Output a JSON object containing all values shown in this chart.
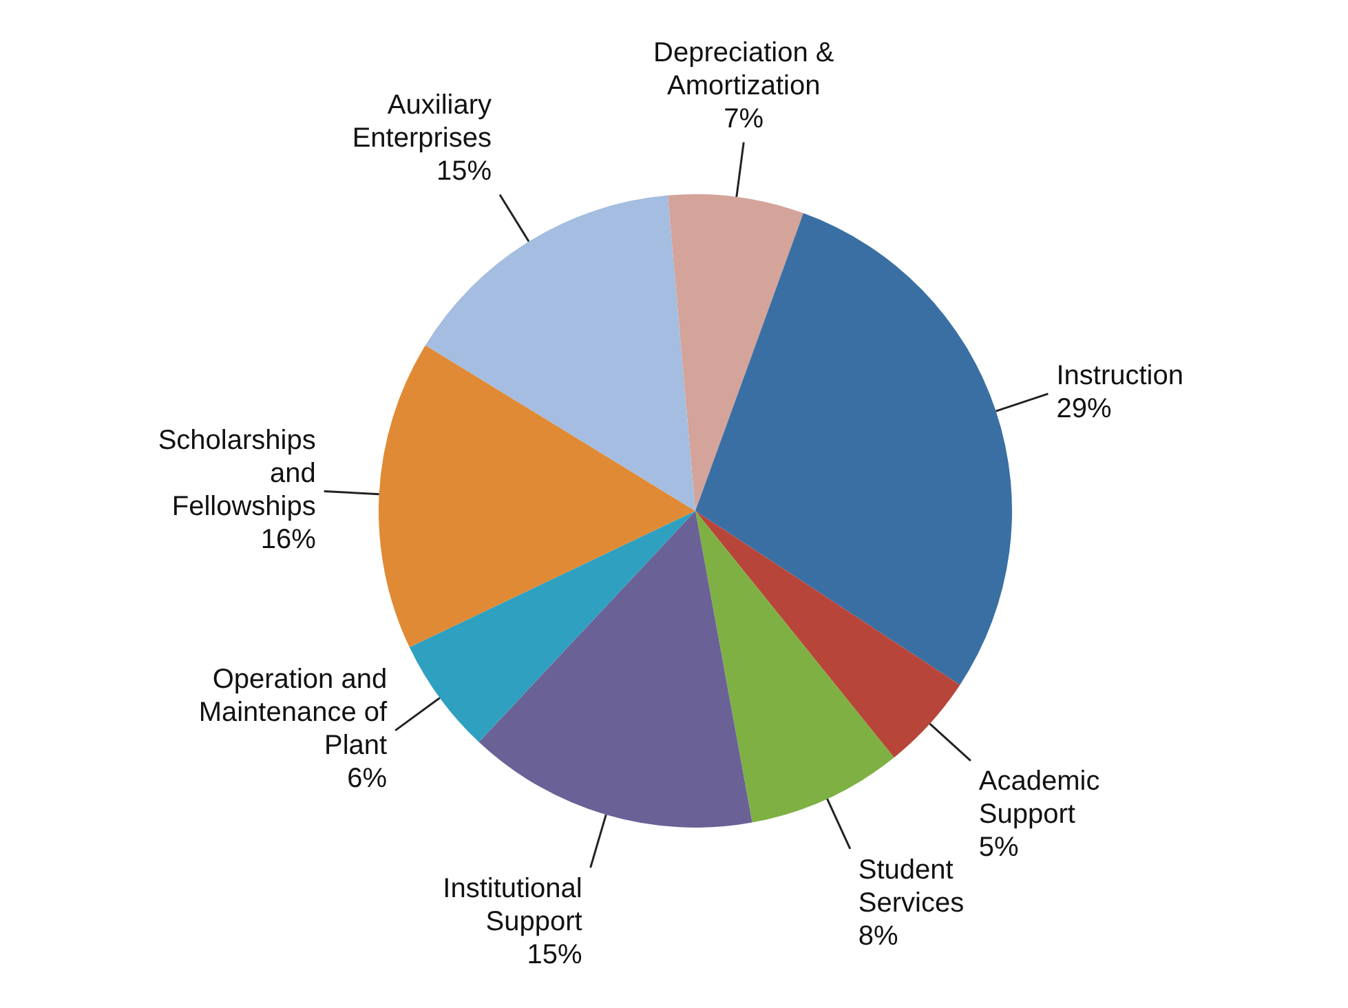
{
  "chart_data": {
    "type": "pie",
    "categories": [
      "Depreciation & Amortization",
      "Instruction",
      "Academic Support",
      "Student Services",
      "Institutional Support",
      "Operation and Maintenance of Plant",
      "Scholarships and Fellowships",
      "Auxiliary Enterprises"
    ],
    "values": [
      7,
      29,
      5,
      8,
      15,
      6,
      16,
      15
    ],
    "value_labels": [
      "7%",
      "29%",
      "5%",
      "8%",
      "15%",
      "6%",
      "16%",
      "15%"
    ],
    "colors": [
      "#d4a39a",
      "#3a6fa3",
      "#b8453a",
      "#7fb043",
      "#6a6196",
      "#2fa0bf",
      "#e08a35",
      "#a4bde0"
    ]
  }
}
